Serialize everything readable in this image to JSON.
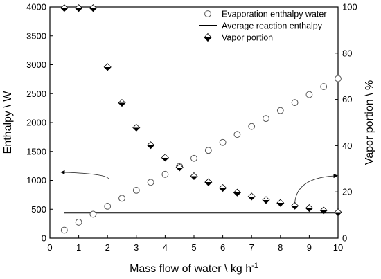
{
  "chart_data": {
    "type": "scatter",
    "x": {
      "label_main": "Mass flow of water \\ kg h",
      "label_sup": "-1",
      "lim": [
        0,
        10
      ],
      "ticks": [
        0,
        1,
        2,
        3,
        4,
        5,
        6,
        7,
        8,
        9,
        10
      ]
    },
    "y_left": {
      "label": "Enthalpy \\ W",
      "lim": [
        0,
        4000
      ],
      "ticks": [
        0,
        500,
        1000,
        1500,
        2000,
        2500,
        3000,
        3500,
        4000
      ]
    },
    "y_right": {
      "label": "Vapor portion \\ %",
      "lim": [
        0,
        100
      ],
      "ticks": [
        0,
        20,
        40,
        60,
        80,
        100
      ]
    },
    "legend_position": "top-right",
    "series": [
      {
        "name": "Evaporation enthalpy water",
        "marker": "open-circle",
        "axis": "left",
        "color": "#555555",
        "x": [
          0.5,
          1.0,
          1.5,
          2.0,
          2.5,
          3.0,
          3.5,
          4.0,
          4.5,
          5.0,
          5.5,
          6.0,
          6.5,
          7.0,
          7.5,
          8.0,
          8.5,
          9.0,
          9.5,
          10.0
        ],
        "y": [
          138,
          276,
          414,
          552,
          690,
          828,
          966,
          1104,
          1242,
          1380,
          1518,
          1656,
          1794,
          1932,
          2070,
          2208,
          2346,
          2484,
          2622,
          2760
        ]
      },
      {
        "name": "Average reaction enthalpy",
        "marker": "line",
        "axis": "left",
        "color": "#000000",
        "x": [
          0.5,
          10.0
        ],
        "y": [
          440,
          440
        ]
      },
      {
        "name": "Vapor portion",
        "marker": "half-filled-diamond",
        "axis": "right",
        "color": "#000000",
        "x": [
          0.5,
          1.0,
          1.5,
          2.0,
          2.5,
          3.0,
          3.5,
          4.0,
          4.5,
          5.0,
          5.5,
          6.0,
          6.5,
          7.0,
          7.5,
          8.0,
          8.5,
          9.0,
          9.5,
          10.0
        ],
        "y": [
          99.5,
          99.5,
          99.5,
          74,
          58.5,
          47.8,
          40.2,
          34.8,
          30.6,
          26.8,
          24.2,
          21.7,
          19.7,
          18.0,
          16.5,
          15.2,
          14.0,
          13.0,
          12.0,
          11.2
        ]
      }
    ],
    "annotations": [
      {
        "kind": "curved-arrow",
        "points_to": "left-axis",
        "from": [
          2.05,
          25.5
        ],
        "to": [
          0.38,
          28.5
        ]
      },
      {
        "kind": "curved-arrow",
        "points_to": "right-axis",
        "from": [
          8.5,
          15.0
        ],
        "to": [
          9.98,
          27.0
        ]
      }
    ]
  }
}
